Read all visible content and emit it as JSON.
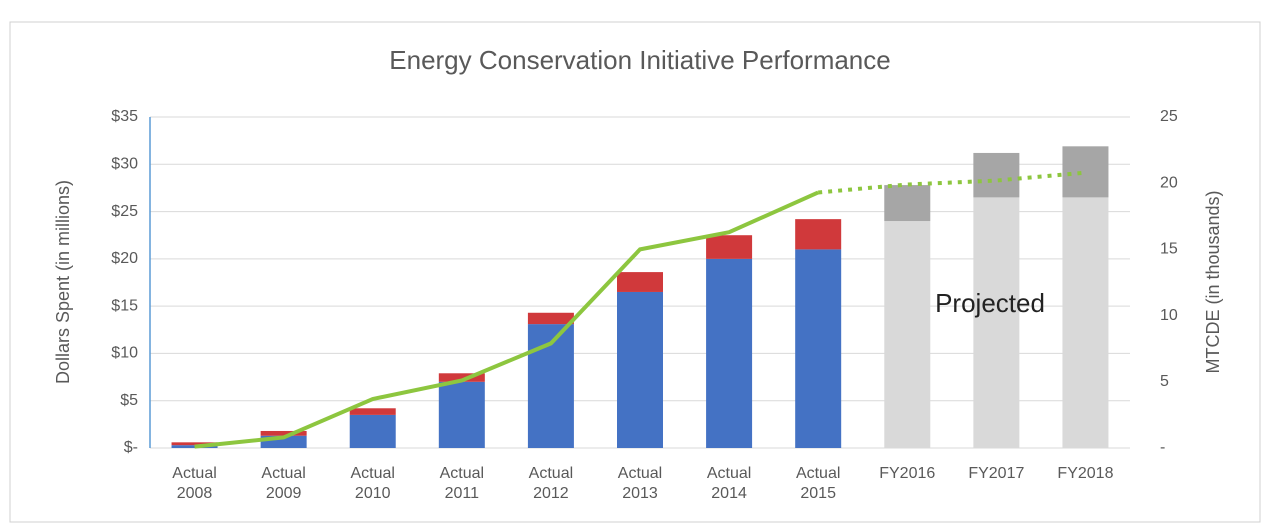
{
  "chart_data": {
    "type": "bar",
    "title": "Energy Conservation Initiative Performance",
    "y_label": "Dollars Spent (in millions)",
    "y2_label": "MTCDE (in thousands)",
    "annotation": "Projected",
    "categories": [
      "Actual 2008",
      "Actual 2009",
      "Actual 2010",
      "Actual 2011",
      "Actual 2012",
      "Actual 2013",
      "Actual 2014",
      "Actual 2015",
      "FY2016",
      "FY2017",
      "FY2018"
    ],
    "series": [
      {
        "color": "#4472c4",
        "values": [
          0.3,
          1.3,
          3.5,
          7.0,
          13.1,
          16.5,
          20.0,
          21.0,
          null,
          null,
          null
        ]
      },
      {
        "color": "#d0393b",
        "values": [
          0.3,
          0.5,
          0.7,
          0.9,
          1.2,
          2.1,
          2.5,
          3.2,
          null,
          null,
          null
        ]
      },
      {
        "color": "#d9d9d9",
        "values": [
          null,
          null,
          null,
          null,
          null,
          null,
          null,
          null,
          24.0,
          26.5,
          26.5
        ]
      },
      {
        "color": "#a6a6a6",
        "values": [
          null,
          null,
          null,
          null,
          null,
          null,
          null,
          null,
          3.8,
          4.7,
          5.4
        ]
      },
      {
        "type": "line",
        "axis": "y2",
        "color": "#8dc63f",
        "values": [
          0.1,
          0.8,
          3.7,
          5.1,
          7.9,
          15.0,
          16.3,
          19.3,
          19.9,
          20.2,
          20.8
        ]
      }
    ],
    "ylim": [
      0,
      35
    ],
    "yticks": [
      {
        "value": 0,
        "label": "$-"
      },
      {
        "value": 5,
        "label": "$5"
      },
      {
        "value": 10,
        "label": "$10"
      },
      {
        "value": 15,
        "label": "$15"
      },
      {
        "value": 20,
        "label": "$20"
      },
      {
        "value": 25,
        "label": "$25"
      },
      {
        "value": 30,
        "label": "$30"
      },
      {
        "value": 35,
        "label": "$35"
      }
    ],
    "y2lim": [
      0,
      25
    ],
    "y2ticks": [
      {
        "value": 0,
        "label": "-"
      },
      5,
      10,
      15,
      20,
      25
    ],
    "grid": true
  }
}
